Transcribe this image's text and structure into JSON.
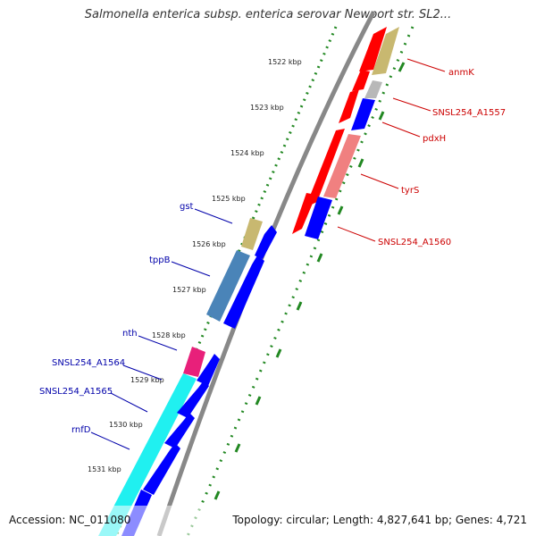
{
  "title": "Salmonella enterica subsp. enterica serovar Newport str. SL2...",
  "footer": {
    "accession_label": "Accession:",
    "accession": "NC_011080",
    "topology_text": "Topology: circular; Length: 4,827,641 bp; Genes: 4,721"
  },
  "colors": {
    "forward_red": "#ff0000",
    "reverse_blue": "#0000ff",
    "pink": "#f08080",
    "olive": "#c8b870",
    "grey": "#b8b8b8",
    "steelblue": "#4a84b8",
    "magenta": "#e8207a",
    "cyan": "#20f0f0",
    "tick_green": "#228822",
    "backbone": "#888888",
    "label_red": "#cc0000",
    "label_blue": "#0000aa"
  },
  "ticks": [
    {
      "label": "1522 kbp"
    },
    {
      "label": "1523 kbp"
    },
    {
      "label": "1524 kbp"
    },
    {
      "label": "1525 kbp"
    },
    {
      "label": "1526 kbp"
    },
    {
      "label": "1527 kbp"
    },
    {
      "label": "1528 kbp"
    },
    {
      "label": "1529 kbp"
    },
    {
      "label": "1530 kbp"
    },
    {
      "label": "1531 kbp"
    }
  ],
  "right_labels": [
    {
      "text": "anmK"
    },
    {
      "text": "SNSL254_A1557"
    },
    {
      "text": "pdxH"
    },
    {
      "text": "tyrS"
    },
    {
      "text": "SNSL254_A1560"
    }
  ],
  "left_labels": [
    {
      "text": "gst"
    },
    {
      "text": "tppB"
    },
    {
      "text": "nth"
    },
    {
      "text": "SNSL254_A1564"
    },
    {
      "text": "SNSL254_A1565"
    },
    {
      "text": "rnfD"
    }
  ]
}
